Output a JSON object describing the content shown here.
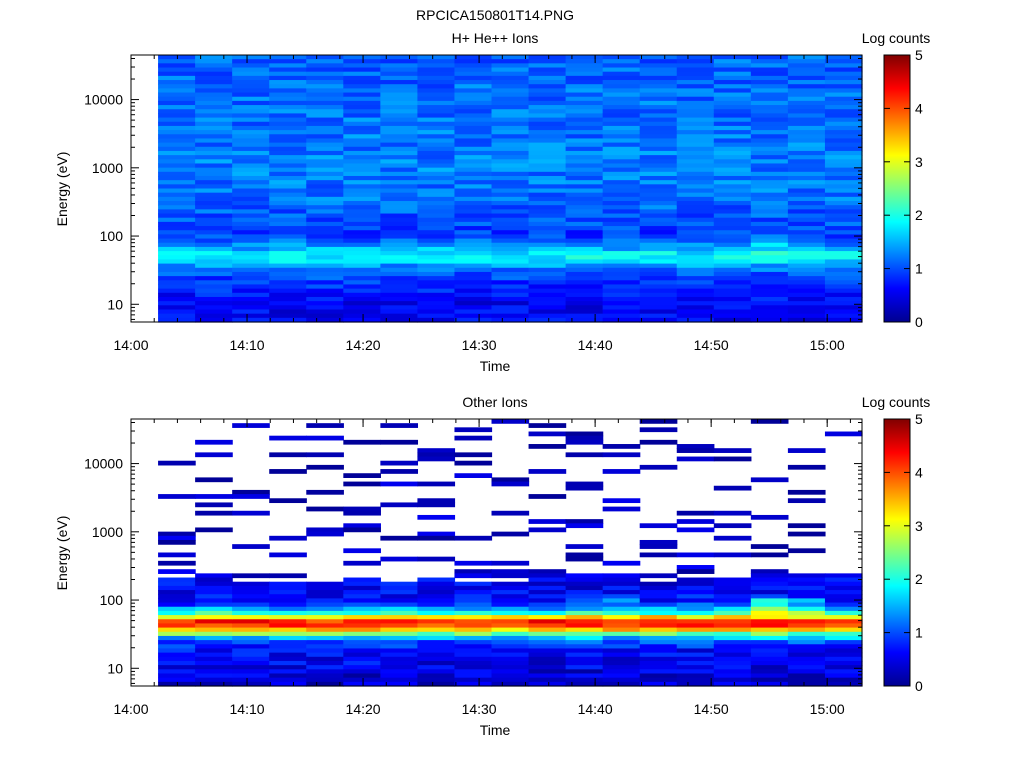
{
  "figure_title": "RPCICA150801T14.PNG",
  "chart_data": [
    {
      "type": "heatmap",
      "title": "H+ He++ Ions",
      "xlabel": "Time",
      "ylabel": "Energy (eV)",
      "x_ticks": [
        "14:00",
        "14:10",
        "14:20",
        "14:30",
        "14:40",
        "14:50",
        "15:00"
      ],
      "y_ticks": [
        "10",
        "100",
        "1000",
        "10000"
      ],
      "y_scale": "log",
      "ylim": [
        5.5,
        45000
      ],
      "x_range": [
        "14:00",
        "15:03"
      ],
      "data_x_range": [
        "14:02:20",
        "15:03"
      ],
      "colorbar": {
        "label": "Log counts",
        "ticks": [
          "0",
          "1",
          "2",
          "3",
          "4",
          "5"
        ],
        "range": [
          0,
          5
        ]
      },
      "columns": 19,
      "rows": 64,
      "profile": [
        [
          40000,
          1.1
        ],
        [
          12000,
          1.15
        ],
        [
          3000,
          1.2
        ],
        [
          1000,
          1.25
        ],
        [
          300,
          1.15
        ],
        [
          130,
          0.95
        ],
        [
          100,
          0.9
        ],
        [
          80,
          1.2
        ],
        [
          62,
          1.55
        ],
        [
          55,
          1.85
        ],
        [
          50,
          1.9
        ],
        [
          45,
          1.85
        ],
        [
          40,
          1.6
        ],
        [
          35,
          1.25
        ],
        [
          28,
          1.05
        ],
        [
          20,
          0.85
        ],
        [
          14,
          0.7
        ],
        [
          10,
          0.55
        ],
        [
          5.5,
          0.6
        ]
      ],
      "column_boost": [
        {
          "col": 16,
          "energy_min": 55,
          "energy_max": 110,
          "delta": 0.3
        },
        {
          "col": 17,
          "energy_min": 55,
          "energy_max": 110,
          "delta": 0.15
        }
      ],
      "noise": 0.28,
      "empty_probability": 0.0,
      "seed": 7
    },
    {
      "type": "heatmap",
      "title": "Other Ions",
      "xlabel": "Time",
      "ylabel": "Energy (eV)",
      "x_ticks": [
        "14:00",
        "14:10",
        "14:20",
        "14:30",
        "14:40",
        "14:50",
        "15:00"
      ],
      "y_ticks": [
        "10",
        "100",
        "1000",
        "10000"
      ],
      "y_scale": "log",
      "ylim": [
        5.5,
        45000
      ],
      "x_range": [
        "14:00",
        "15:03"
      ],
      "data_x_range": [
        "14:02:20",
        "15:03"
      ],
      "colorbar": {
        "label": "Log counts",
        "ticks": [
          "0",
          "1",
          "2",
          "3",
          "4",
          "5"
        ],
        "range": [
          0,
          5
        ]
      },
      "columns": 19,
      "rows": 64,
      "profile": [
        [
          40000,
          0.15
        ],
        [
          2000,
          0.2
        ],
        [
          230,
          0.3
        ],
        [
          200,
          0.5
        ],
        [
          150,
          0.55
        ],
        [
          90,
          0.75
        ],
        [
          75,
          1.4
        ],
        [
          62,
          2.2
        ],
        [
          55,
          3.5
        ],
        [
          50,
          4.15
        ],
        [
          45,
          4.3
        ],
        [
          40,
          3.9
        ],
        [
          35,
          3.1
        ],
        [
          30,
          1.9
        ],
        [
          25,
          1.0
        ],
        [
          18,
          0.6
        ],
        [
          12,
          0.55
        ],
        [
          8,
          0.4
        ],
        [
          5.5,
          0.3
        ]
      ],
      "column_boost": [
        {
          "col": 16,
          "energy_min": 60,
          "energy_max": 100,
          "delta": 1.2
        },
        {
          "col": 17,
          "energy_min": 60,
          "energy_max": 100,
          "delta": 0.6
        },
        {
          "col": 12,
          "energy_min": 60,
          "energy_max": 100,
          "delta": 0.4
        }
      ],
      "noise": 0.35,
      "empty_probability": 0.8,
      "empty_energy_min": 230,
      "sparse_energy_min": 180,
      "sparse_empty_probability": 0.35,
      "seed": 13
    }
  ]
}
